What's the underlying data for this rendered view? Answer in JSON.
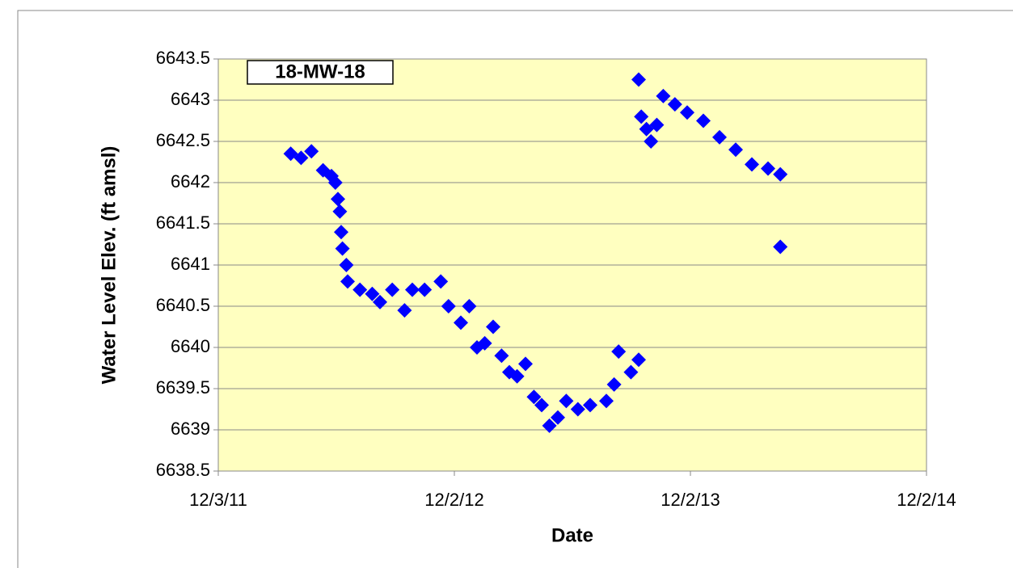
{
  "chart_data": {
    "type": "scatter",
    "annotation": "18-MW-18",
    "xlabel": "Date",
    "ylabel": "Water Level Elev. (ft amsl)",
    "color": "#0000ff",
    "grid": true,
    "xlim": [
      "2011-12-03",
      "2014-12-02"
    ],
    "xticks": [
      {
        "value": "2011-12-03",
        "label": "12/3/11"
      },
      {
        "value": "2012-12-02",
        "label": "12/2/12"
      },
      {
        "value": "2013-12-02",
        "label": "12/2/13"
      },
      {
        "value": "2014-12-02",
        "label": "12/2/14"
      }
    ],
    "ylim": [
      6638.5,
      6643.5
    ],
    "yticks": [
      6638.5,
      6639,
      6639.5,
      6640,
      6640.5,
      6641,
      6641.5,
      6642,
      6642.5,
      6643,
      6643.5
    ],
    "x": [
      "2012-03-24",
      "2012-04-09",
      "2012-04-25",
      "2012-05-13",
      "2012-05-26",
      "2012-06-01",
      "2012-06-05",
      "2012-06-08",
      "2012-06-10",
      "2012-06-12",
      "2012-06-18",
      "2012-06-20",
      "2012-07-09",
      "2012-07-28",
      "2012-08-09",
      "2012-08-28",
      "2012-09-16",
      "2012-09-28",
      "2012-10-17",
      "2012-11-11",
      "2012-11-23",
      "2012-12-12",
      "2012-12-25",
      "2013-01-06",
      "2013-01-18",
      "2013-01-31",
      "2013-02-13",
      "2013-02-25",
      "2013-03-09",
      "2013-03-22",
      "2013-04-04",
      "2013-04-16",
      "2013-04-28",
      "2013-05-11",
      "2013-05-24",
      "2013-06-11",
      "2013-06-30",
      "2013-07-25",
      "2013-08-06",
      "2013-08-13",
      "2013-09-01",
      "2013-09-13",
      "2013-09-13",
      "2013-09-17",
      "2013-09-25",
      "2013-10-02",
      "2013-10-11",
      "2013-10-21",
      "2013-11-08",
      "2013-11-27",
      "2013-12-22",
      "2014-01-16",
      "2014-02-10",
      "2014-03-07",
      "2014-04-01",
      "2014-04-20",
      "2014-04-20"
    ],
    "values": [
      6642.35,
      6642.3,
      6642.38,
      6642.15,
      6642.08,
      6642.0,
      6641.8,
      6641.65,
      6641.4,
      6641.2,
      6641.0,
      6640.8,
      6640.7,
      6640.65,
      6640.55,
      6640.7,
      6640.45,
      6640.7,
      6640.7,
      6640.8,
      6640.5,
      6640.3,
      6640.5,
      6640.0,
      6640.05,
      6640.25,
      6639.9,
      6639.7,
      6639.65,
      6639.8,
      6639.4,
      6639.3,
      6639.05,
      6639.15,
      6639.35,
      6639.25,
      6639.3,
      6639.35,
      6639.55,
      6639.95,
      6639.7,
      6639.85,
      6643.25,
      6642.8,
      6642.65,
      6642.5,
      6642.7,
      6643.05,
      6642.95,
      6642.85,
      6642.75,
      6642.55,
      6642.4,
      6642.22,
      6642.17,
      6642.1,
      6641.22
    ]
  }
}
